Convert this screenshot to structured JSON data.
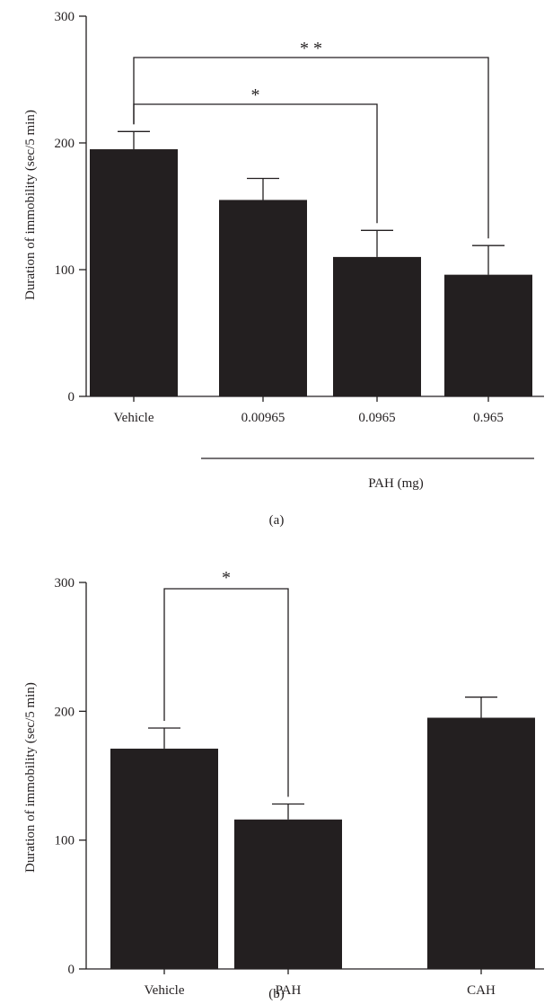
{
  "chart_data": [
    {
      "type": "bar",
      "panel_label": "(a)",
      "ylabel": "Duration of immobility (sec/5 min)",
      "ylim": [
        0,
        300
      ],
      "yticks": [
        0,
        100,
        200,
        300
      ],
      "categories": [
        "Vehicle",
        "0.00965",
        "0.0965",
        "0.965"
      ],
      "values": [
        195,
        155,
        110,
        96
      ],
      "errors": [
        14,
        17,
        21,
        23
      ],
      "group_label": "PAH (mg)",
      "bar_color": "#231f20",
      "significance": [
        {
          "from": 0,
          "to": 2,
          "label": "*"
        },
        {
          "from": 0,
          "to": 3,
          "label": "**"
        }
      ],
      "grid": false
    },
    {
      "type": "bar",
      "panel_label": "(b)",
      "ylabel": "Duration of immobility (sec/5 min)",
      "ylim": [
        0,
        300
      ],
      "yticks": [
        0,
        100,
        200,
        300
      ],
      "categories": [
        "Vehicle",
        "PAH",
        "CAH"
      ],
      "values": [
        171,
        116,
        195
      ],
      "errors": [
        16,
        12,
        16
      ],
      "bar_color": "#231f20",
      "significance": [
        {
          "from": 0,
          "to": 1,
          "label": "*"
        }
      ],
      "grid": false
    }
  ]
}
